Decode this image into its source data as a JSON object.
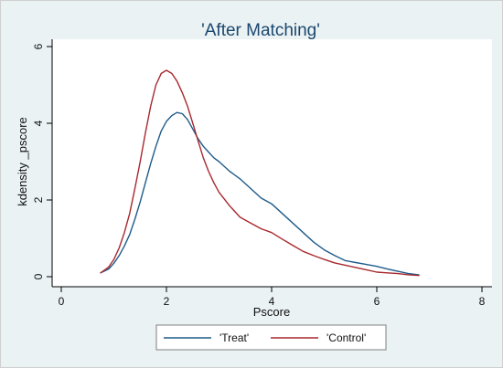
{
  "chart_data": {
    "type": "line",
    "title": "'After Matching'",
    "xlabel": "Pscore",
    "ylabel": "kdensity _pscore",
    "xlim": [
      0,
      8
    ],
    "ylim": [
      0,
      6
    ],
    "xticks": [
      0,
      2,
      4,
      6,
      8
    ],
    "yticks": [
      0,
      2,
      4,
      6
    ],
    "legend_position": "bottom",
    "grid": false,
    "series": [
      {
        "name": "'Treat'",
        "color": "#1f5b8a",
        "x": [
          0.75,
          0.9,
          1.0,
          1.1,
          1.2,
          1.3,
          1.4,
          1.5,
          1.6,
          1.7,
          1.8,
          1.9,
          2.0,
          2.1,
          2.2,
          2.3,
          2.4,
          2.5,
          2.6,
          2.7,
          2.8,
          2.9,
          3.0,
          3.2,
          3.4,
          3.6,
          3.8,
          4.0,
          4.2,
          4.4,
          4.6,
          4.8,
          5.0,
          5.2,
          5.4,
          5.6,
          5.8,
          6.0,
          6.2,
          6.4,
          6.6,
          6.8
        ],
        "y": [
          0.1,
          0.2,
          0.35,
          0.55,
          0.8,
          1.1,
          1.5,
          1.95,
          2.45,
          2.95,
          3.4,
          3.8,
          4.05,
          4.2,
          4.28,
          4.25,
          4.1,
          3.85,
          3.6,
          3.4,
          3.25,
          3.1,
          3.0,
          2.75,
          2.55,
          2.3,
          2.05,
          1.9,
          1.65,
          1.4,
          1.15,
          0.9,
          0.7,
          0.55,
          0.42,
          0.37,
          0.32,
          0.27,
          0.2,
          0.14,
          0.08,
          0.05
        ]
      },
      {
        "name": "'Control'",
        "color": "#a8282e",
        "x": [
          0.75,
          0.9,
          1.0,
          1.1,
          1.2,
          1.3,
          1.4,
          1.5,
          1.6,
          1.7,
          1.8,
          1.9,
          2.0,
          2.1,
          2.2,
          2.3,
          2.4,
          2.5,
          2.6,
          2.7,
          2.8,
          2.9,
          3.0,
          3.2,
          3.4,
          3.6,
          3.8,
          4.0,
          4.2,
          4.4,
          4.6,
          4.8,
          5.0,
          5.2,
          5.4,
          5.6,
          5.8,
          6.0,
          6.2,
          6.4,
          6.6,
          6.8
        ],
        "y": [
          0.1,
          0.25,
          0.45,
          0.75,
          1.15,
          1.65,
          2.3,
          3.0,
          3.75,
          4.45,
          5.0,
          5.3,
          5.38,
          5.3,
          5.1,
          4.8,
          4.45,
          4.0,
          3.55,
          3.1,
          2.75,
          2.45,
          2.2,
          1.85,
          1.55,
          1.4,
          1.25,
          1.15,
          0.98,
          0.82,
          0.66,
          0.55,
          0.45,
          0.36,
          0.3,
          0.24,
          0.18,
          0.12,
          0.1,
          0.08,
          0.05,
          0.03
        ]
      }
    ]
  }
}
